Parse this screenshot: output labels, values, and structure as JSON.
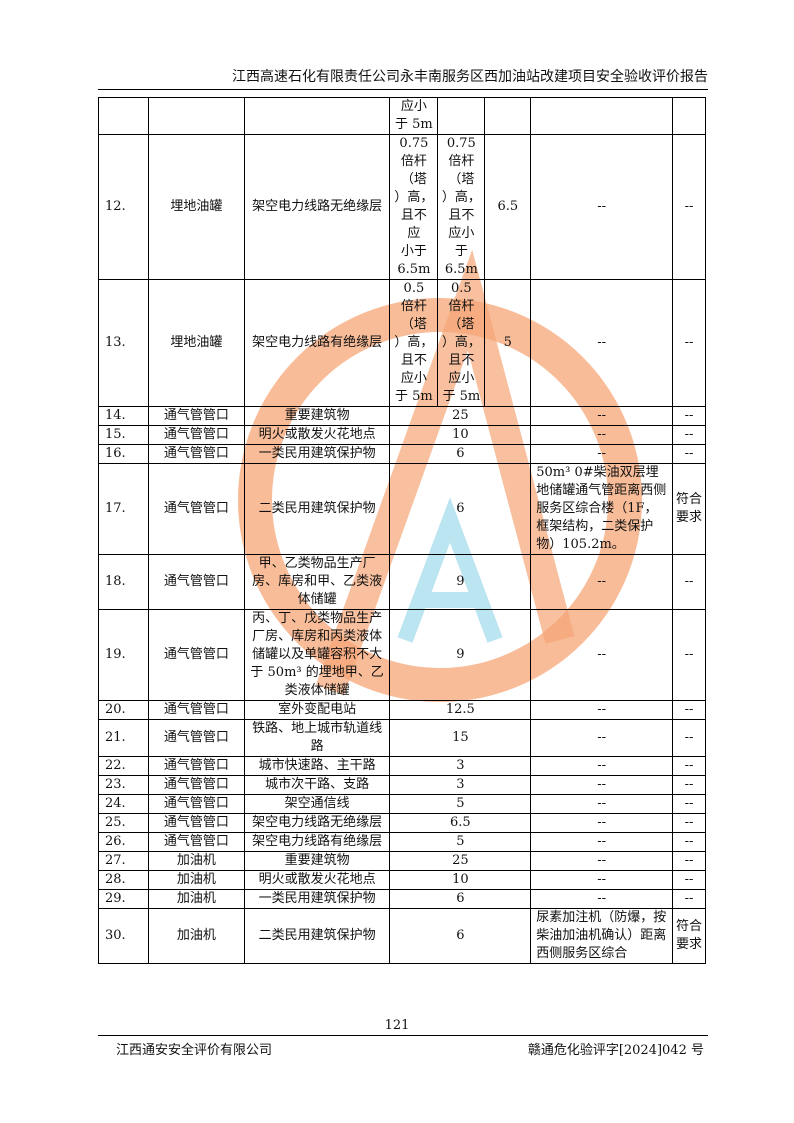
{
  "header": {
    "title": "江西高速石化有限责任公司永丰南服务区西加油站改建项目安全验收评价报告"
  },
  "watermark": {
    "company": "江西通安安全评价有限公司",
    "brand": "江西通安",
    "ring_color": "#f5a576",
    "letter_color": "#8fd3ea",
    "text_color": "#e8473a"
  },
  "table": {
    "rows": [
      {
        "cells": [
          "",
          "",
          "",
          "应小\n于 5m",
          "",
          "",
          "",
          ""
        ]
      },
      {
        "cells": [
          "12.",
          "埋地油罐",
          "架空电力线路无绝缘层",
          "0.75\n倍杆\n（塔\n）高，\n且不\n应\n小于\n6.5m",
          "0.75\n倍杆\n（塔\n）高，\n且不\n应小\n于\n6.5m",
          "6.5",
          "--",
          "--"
        ]
      },
      {
        "cells": [
          "13.",
          "埋地油罐",
          "架空电力线路有绝缘层",
          "0.5\n倍杆\n（塔\n）高，\n且不\n应小\n于 5m",
          "0.5\n倍杆\n（塔\n）高，\n且不\n应小\n于 5m",
          "5",
          "--",
          "--"
        ]
      },
      {
        "merged": true,
        "cells": [
          "14.",
          "通气管管口",
          "重要建筑物",
          "25",
          "--",
          "--"
        ]
      },
      {
        "merged": true,
        "cells": [
          "15.",
          "通气管管口",
          "明火或散发火花地点",
          "10",
          "--",
          "--"
        ]
      },
      {
        "merged": true,
        "cells": [
          "16.",
          "通气管管口",
          "一类民用建筑保护物",
          "6",
          "--",
          "--"
        ]
      },
      {
        "merged": true,
        "cells": [
          "17.",
          "通气管管口",
          "二类民用建筑保护物",
          "6",
          "50m³ 0#柴油双层埋地储罐通气管距离西侧服务区综合楼（1F，框架结构，二类保护物）105.2m。",
          "符合要求"
        ]
      },
      {
        "merged": true,
        "cells": [
          "18.",
          "通气管管口",
          "甲、乙类物品生产厂房、库房和甲、乙类液体储罐",
          "9",
          "--",
          "--"
        ]
      },
      {
        "merged": true,
        "cells": [
          "19.",
          "通气管管口",
          "丙、丁、戊类物品生产厂房、库房和丙类液体储罐以及单罐容积不大于 50m³ 的埋地甲、乙类液体储罐",
          "9",
          "--",
          "--"
        ]
      },
      {
        "merged": true,
        "cells": [
          "20.",
          "通气管管口",
          "室外变配电站",
          "12.5",
          "--",
          "--"
        ]
      },
      {
        "merged": true,
        "cells": [
          "21.",
          "通气管管口",
          "铁路、地上城市轨道线路",
          "15",
          "--",
          "--"
        ]
      },
      {
        "merged": true,
        "cells": [
          "22.",
          "通气管管口",
          "城市快速路、主干路",
          "3",
          "--",
          "--"
        ]
      },
      {
        "merged": true,
        "cells": [
          "23.",
          "通气管管口",
          "城市次干路、支路",
          "3",
          "--",
          "--"
        ]
      },
      {
        "merged": true,
        "cells": [
          "24.",
          "通气管管口",
          "架空通信线",
          "5",
          "--",
          "--"
        ]
      },
      {
        "merged": true,
        "cells": [
          "25.",
          "通气管管口",
          "架空电力线路无绝缘层",
          "6.5",
          "--",
          "--"
        ]
      },
      {
        "merged": true,
        "cells": [
          "26.",
          "通气管管口",
          "架空电力线路有绝缘层",
          "5",
          "--",
          "--"
        ]
      },
      {
        "merged": true,
        "cells": [
          "27.",
          "加油机",
          "重要建筑物",
          "25",
          "--",
          "--"
        ]
      },
      {
        "merged": true,
        "cells": [
          "28.",
          "加油机",
          "明火或散发火花地点",
          "10",
          "--",
          "--"
        ]
      },
      {
        "merged": true,
        "cells": [
          "29.",
          "加油机",
          "一类民用建筑保护物",
          "6",
          "--",
          "--"
        ]
      },
      {
        "merged": true,
        "cells": [
          "30.",
          "加油机",
          "二类民用建筑保护物",
          "6",
          "尿素加注机（防爆，按柴油加油机确认）距离西侧服务区综合",
          "符合要求"
        ]
      }
    ]
  },
  "footer": {
    "page_number": "121",
    "company": "江西通安安全评价有限公司",
    "doc_number": "赣通危化验评字[2024]042 号"
  }
}
